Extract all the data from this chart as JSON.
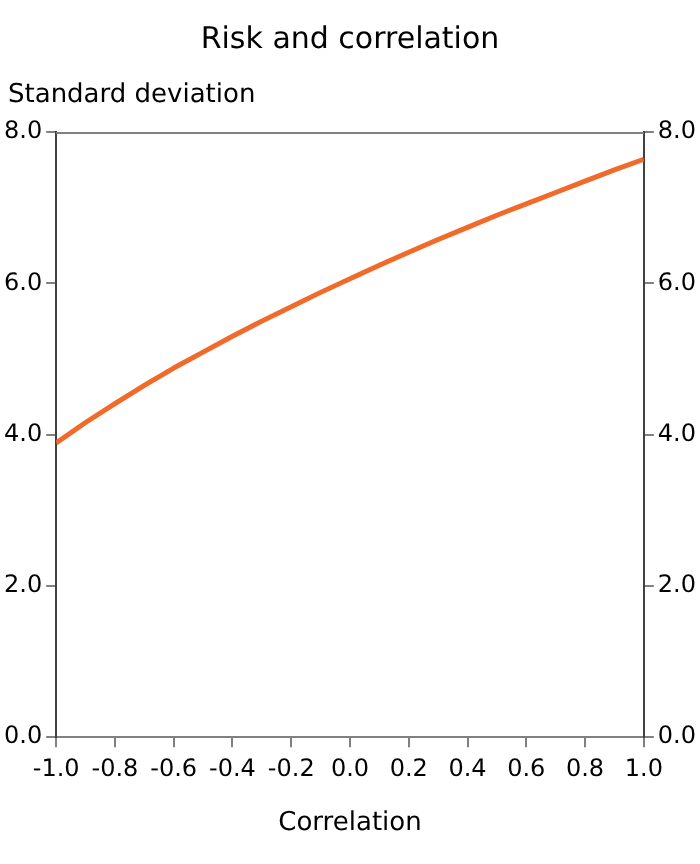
{
  "chart_data": {
    "type": "line",
    "title": "Risk and correlation",
    "ylabel": "Standard deviation",
    "xlabel": "Correlation",
    "x": [
      -1,
      -0.9,
      -0.8,
      -0.7,
      -0.6,
      -0.5,
      -0.4,
      -0.3,
      -0.2,
      -0.1,
      0,
      0.1,
      0.2,
      0.3,
      0.4,
      0.5,
      0.6,
      0.7,
      0.8,
      0.9,
      1
    ],
    "series": [
      {
        "color": "#f26a2a",
        "values": [
          3.89,
          4.16,
          4.41,
          4.65,
          4.88,
          5.09,
          5.3,
          5.5,
          5.69,
          5.88,
          6.06,
          6.24,
          6.41,
          6.58,
          6.74,
          6.9,
          7.05,
          7.2,
          7.35,
          7.5,
          7.64
        ]
      }
    ],
    "xlim": [
      -1,
      1
    ],
    "xticks": [
      {
        "value": -1,
        "label": "-1.0"
      },
      {
        "value": -0.8,
        "label": "-0.8"
      },
      {
        "value": -0.6,
        "label": "-0.6"
      },
      {
        "value": -0.4,
        "label": "-0.4"
      },
      {
        "value": -0.2,
        "label": "-0.2"
      },
      {
        "value": 0,
        "label": "0.0"
      },
      {
        "value": 0.2,
        "label": "0.2"
      },
      {
        "value": 0.4,
        "label": "0.4"
      },
      {
        "value": 0.6,
        "label": "0.6"
      },
      {
        "value": 0.8,
        "label": "0.8"
      },
      {
        "value": 1,
        "label": "1.0"
      }
    ],
    "ylim": [
      0,
      8
    ],
    "yticks": [
      {
        "value": 0,
        "label": "0.0"
      },
      {
        "value": 2,
        "label": "2.0"
      },
      {
        "value": 4,
        "label": "4.0"
      },
      {
        "value": 6,
        "label": "6.0"
      },
      {
        "value": 8,
        "label": "8.0"
      }
    ],
    "y2lim": [
      0,
      8
    ],
    "y2ticks": [
      {
        "value": 0,
        "label": "0.0"
      },
      {
        "value": 2,
        "label": "2.0"
      },
      {
        "value": 4,
        "label": "4.0"
      },
      {
        "value": 6,
        "label": "6.0"
      },
      {
        "value": 8,
        "label": "8.0"
      }
    ],
    "grid": false,
    "legend": false,
    "marker": "none",
    "line_style": "solid"
  }
}
